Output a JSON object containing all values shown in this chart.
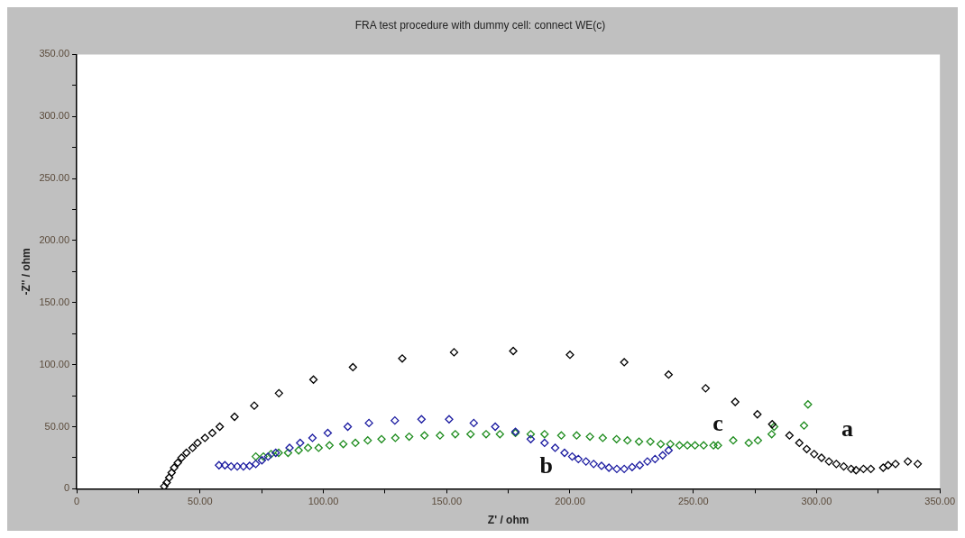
{
  "chart_data": {
    "type": "scatter",
    "title": "FRA test procedure with dummy cell: connect WE(c)",
    "xlabel": "Z' / ohm",
    "ylabel": "-Z'' / ohm",
    "xlim": [
      0,
      350
    ],
    "ylim": [
      0,
      350
    ],
    "xticks": [
      0,
      {
        "value": 25,
        "label": null
      },
      {
        "value": 50,
        "label": "50.00"
      },
      {
        "value": 75,
        "label": null
      },
      {
        "value": 100,
        "label": "100.00"
      },
      {
        "value": 125,
        "label": null
      },
      {
        "value": 150,
        "label": "150.00"
      },
      {
        "value": 175,
        "label": null
      },
      {
        "value": 200,
        "label": "200.00"
      },
      {
        "value": 225,
        "label": null
      },
      {
        "value": 250,
        "label": "250.00"
      },
      {
        "value": 275,
        "label": null
      },
      {
        "value": 300,
        "label": "300.00"
      },
      {
        "value": 325,
        "label": null
      },
      {
        "value": 350,
        "label": "350.00"
      }
    ],
    "yticks": [
      0,
      {
        "value": 25,
        "label": null
      },
      {
        "value": 50,
        "label": "50.00"
      },
      {
        "value": 75,
        "label": null
      },
      {
        "value": 100,
        "label": "100.00"
      },
      {
        "value": 125,
        "label": null
      },
      {
        "value": 150,
        "label": "150.00"
      },
      {
        "value": 175,
        "label": null
      },
      {
        "value": 200,
        "label": "200.00"
      },
      {
        "value": 225,
        "label": null
      },
      {
        "value": 250,
        "label": "250.00"
      },
      {
        "value": 275,
        "label": null
      },
      {
        "value": 300,
        "label": "300.00"
      },
      {
        "value": 325,
        "label": null
      },
      {
        "value": 350,
        "label": "350.00"
      }
    ],
    "grid": false,
    "legend": false,
    "marker": "diamond",
    "series": [
      {
        "name": "a",
        "color": "#000000",
        "x": [
          35.5,
          36.5,
          37.5,
          38.5,
          39.5,
          41,
          42.5,
          44.5,
          47,
          49,
          52,
          55,
          58,
          64,
          72,
          82,
          96,
          112,
          132,
          153,
          177,
          200,
          222,
          240,
          255,
          267,
          276,
          282,
          289,
          293,
          296,
          299,
          302,
          305,
          308,
          311,
          314,
          316,
          319,
          322,
          327,
          329,
          332,
          337,
          341
        ],
        "values": [
          2,
          5,
          9,
          13,
          17,
          21,
          25,
          29,
          33,
          37,
          41,
          45,
          50,
          58,
          67,
          77,
          88,
          98,
          105,
          110,
          111,
          108,
          102,
          92,
          81,
          70,
          60,
          52,
          43,
          37,
          32,
          28,
          25,
          22,
          20,
          18,
          16,
          15,
          16,
          16,
          17,
          19,
          20,
          22,
          20
        ]
      },
      {
        "name": "b",
        "color": "#1a1aa0",
        "x": [
          57.7,
          60.1,
          62.6,
          65.1,
          67.6,
          70.1,
          72.6,
          75.1,
          77.6,
          80.7,
          86.3,
          90.6,
          95.6,
          101.8,
          109.9,
          118.5,
          129,
          139.8,
          151,
          161,
          169.7,
          177.9,
          184.1,
          189.7,
          194,
          197.8,
          200.9,
          203.4,
          206.5,
          209.6,
          212.8,
          215.8,
          219,
          222,
          225.2,
          228.3,
          231.4,
          234.5,
          237.6,
          240
        ],
        "values": [
          19,
          19,
          18,
          18,
          18,
          18.5,
          20,
          23,
          26,
          29,
          33,
          37,
          41,
          45,
          50,
          53,
          55,
          56,
          56,
          53,
          50,
          46,
          40,
          37,
          33,
          29,
          26,
          24,
          22,
          20,
          18.5,
          17,
          16,
          16,
          17.5,
          19,
          22,
          24,
          27,
          31
        ]
      },
      {
        "name": "c",
        "color": "#1e8c1e",
        "x": [
          72.6,
          75.7,
          78.8,
          81.9,
          85.7,
          90,
          93.8,
          98.1,
          102.5,
          108.1,
          113,
          118,
          123.6,
          129.2,
          134.8,
          141,
          147.3,
          153.5,
          159.7,
          166,
          171.6,
          177.9,
          184.1,
          189.7,
          196.5,
          202.7,
          208.1,
          213.3,
          218.9,
          223.3,
          228,
          232.6,
          236.8,
          240.7,
          244.4,
          247.6,
          250.7,
          254.2,
          258.2,
          260,
          266.2,
          272.5,
          276.2,
          281.8,
          282.8,
          294.9,
          296.5
        ],
        "values": [
          26,
          26,
          28,
          29,
          29,
          31,
          33,
          33,
          35,
          36,
          37,
          39,
          40,
          41,
          42,
          43,
          43,
          44,
          44,
          44,
          44,
          45,
          44,
          44,
          43,
          43,
          42,
          41,
          40,
          39,
          38,
          38,
          36,
          36,
          35,
          35,
          35,
          35,
          35,
          35,
          39,
          37,
          39,
          44,
          50,
          51,
          68
        ]
      }
    ]
  }
}
